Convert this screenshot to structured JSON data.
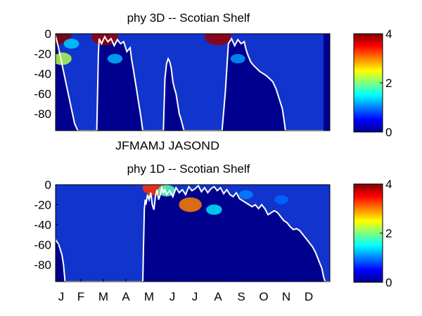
{
  "colors": {
    "background": "#ffffff",
    "mixed_layer_line": "#ffffff",
    "low": "#00008f",
    "high": "#800000"
  },
  "chart_data": [
    {
      "type": "heatmap",
      "title": "phy 3D   -- Scotian Shelf",
      "xlabel": "",
      "ylabel": "",
      "y_ticks": [
        "0",
        "-20",
        "-40",
        "-60",
        "-80"
      ],
      "y_tick_values": [
        0,
        -20,
        -40,
        -60,
        -80
      ],
      "ylim": [
        -97,
        0
      ],
      "x_tick_labels": [
        "JFMAMJ JASOND"
      ],
      "colorbar": {
        "min": 0,
        "max": 4,
        "ticks": [
          "0",
          "2",
          "4"
        ],
        "tick_values": [
          0,
          2,
          4
        ],
        "colormap": "jet"
      },
      "blooms": [
        {
          "day": 3,
          "depth": -2,
          "value": 4.0
        },
        {
          "day": 8,
          "depth": -25,
          "value": 2.2
        },
        {
          "day": 20,
          "depth": -10,
          "value": 1.3
        },
        {
          "day": 62,
          "depth": -3,
          "value": 3.9
        },
        {
          "day": 75,
          "depth": -25,
          "value": 1.2
        },
        {
          "day": 205,
          "depth": -3,
          "value": 3.9
        },
        {
          "day": 230,
          "depth": -25,
          "value": 1.1
        }
      ],
      "mixed_layer_depth": {
        "x": [
          0,
          4,
          8,
          12,
          16,
          20,
          24,
          28,
          32,
          36,
          40,
          44,
          46,
          48,
          50,
          52,
          53,
          54,
          55,
          58,
          62,
          66,
          70,
          74,
          78,
          82,
          86,
          90,
          94,
          96,
          98,
          100,
          102,
          104,
          106,
          108,
          110,
          112,
          114,
          116,
          118,
          120,
          124,
          128,
          130,
          132,
          134,
          136,
          138,
          140,
          142,
          144,
          146,
          148,
          150,
          152,
          154,
          156,
          158,
          162,
          166,
          170,
          174,
          178,
          182,
          186,
          190,
          192,
          193,
          194,
          195,
          198,
          202,
          206,
          210,
          214,
          218,
          222,
          226,
          230,
          234,
          238,
          240,
          242,
          244,
          246,
          248,
          250,
          254,
          258,
          262,
          266,
          270,
          274,
          278,
          282,
          286,
          288,
          290,
          292,
          294,
          296,
          298,
          300,
          302,
          304,
          306,
          308,
          310,
          312,
          314,
          316,
          318,
          320,
          322,
          324,
          326,
          328,
          330,
          332,
          334,
          336,
          338
        ],
        "y": [
          -2,
          -15,
          -30,
          -45,
          -60,
          -75,
          -90,
          -97,
          -97,
          -97,
          -97,
          -97,
          -97,
          -97,
          -97,
          -97,
          -60,
          -20,
          -5,
          -10,
          -3,
          -8,
          -5,
          -12,
          -6,
          -10,
          -8,
          -18,
          -14,
          -26,
          -35,
          -45,
          -55,
          -65,
          -75,
          -85,
          -97,
          -97,
          -97,
          -97,
          -97,
          -97,
          -97,
          -97,
          -97,
          -97,
          -97,
          -97,
          -45,
          -30,
          -25,
          -28,
          -35,
          -48,
          -55,
          -60,
          -70,
          -80,
          -85,
          -97,
          -97,
          -97,
          -97,
          -97,
          -97,
          -97,
          -97,
          -97,
          -97,
          -97,
          -97,
          -97,
          -97,
          -97,
          -97,
          -60,
          -10,
          -5,
          -12,
          -6,
          -10,
          -8,
          -15,
          -20,
          -24,
          -28,
          -30,
          -32,
          -35,
          -38,
          -40,
          -42,
          -45,
          -48,
          -55,
          -65,
          -75,
          -85,
          -97,
          -97,
          -97,
          -97,
          -97,
          -97,
          -97,
          -97,
          -97,
          -97,
          -97,
          -97,
          -97,
          -97,
          -97,
          -97,
          -97,
          -97,
          -97,
          -97,
          -97,
          -97,
          -97,
          -97,
          -97,
          -97
        ]
      }
    },
    {
      "type": "heatmap",
      "title": "phy 1D   -- Scotian Shelf",
      "xlabel": "",
      "ylabel": "",
      "y_ticks": [
        "0",
        "-20",
        "-40",
        "-60",
        "-80"
      ],
      "y_tick_values": [
        0,
        -20,
        -40,
        -60,
        -80
      ],
      "ylim": [
        -97,
        0
      ],
      "x_tick_labels": [
        "J",
        "F",
        "M",
        "A",
        "M",
        "J",
        "J",
        "A",
        "S",
        "O",
        "N",
        "D"
      ],
      "colorbar": {
        "min": 0,
        "max": 4,
        "ticks": [
          "0",
          "2",
          "4"
        ],
        "tick_values": [
          0,
          2,
          4
        ],
        "colormap": "jet"
      },
      "blooms": [
        {
          "day": 125,
          "depth": -3,
          "value": 3.3
        },
        {
          "day": 140,
          "depth": -6,
          "value": 1.8
        },
        {
          "day": 170,
          "depth": -20,
          "value": 3.0
        },
        {
          "day": 200,
          "depth": -25,
          "value": 1.4
        },
        {
          "day": 240,
          "depth": -10,
          "value": 1.0
        },
        {
          "day": 285,
          "depth": -15,
          "value": 0.9
        }
      ],
      "mixed_layer_depth": {
        "x": [
          0,
          4,
          6,
          8,
          10,
          12,
          14,
          16,
          18,
          20,
          30,
          40,
          60,
          80,
          100,
          108,
          110,
          111,
          112,
          113,
          114,
          116,
          118,
          120,
          122,
          124,
          126,
          128,
          130,
          132,
          134,
          136,
          138,
          140,
          144,
          148,
          152,
          156,
          160,
          164,
          168,
          172,
          176,
          180,
          184,
          188,
          192,
          196,
          200,
          204,
          208,
          212,
          216,
          220,
          224,
          228,
          232,
          236,
          240,
          244,
          248,
          252,
          256,
          260,
          264,
          268,
          272,
          276,
          280,
          284,
          288,
          292,
          296,
          300,
          304,
          308,
          312,
          316,
          320,
          324,
          328,
          332,
          336,
          338,
          340,
          342,
          344,
          346
        ],
        "y": [
          -55,
          -60,
          -65,
          -70,
          -80,
          -97,
          -97,
          -97,
          -97,
          -97,
          -97,
          -97,
          -97,
          -97,
          -97,
          -97,
          -97,
          -60,
          -25,
          -15,
          -20,
          -10,
          -15,
          -8,
          -20,
          -25,
          -12,
          -5,
          -15,
          -10,
          -3,
          -8,
          -5,
          -10,
          -6,
          -12,
          -3,
          -8,
          -5,
          -10,
          -2,
          -6,
          -4,
          -1,
          -7,
          -3,
          -8,
          -4,
          -2,
          -6,
          -3,
          -9,
          -5,
          -10,
          -12,
          -8,
          -14,
          -16,
          -18,
          -20,
          -22,
          -20,
          -24,
          -20,
          -24,
          -30,
          -28,
          -26,
          -28,
          -32,
          -36,
          -38,
          -42,
          -45,
          -44,
          -46,
          -50,
          -54,
          -58,
          -62,
          -68,
          -76,
          -84,
          -92,
          -97,
          -97,
          -97,
          -97
        ]
      }
    }
  ]
}
